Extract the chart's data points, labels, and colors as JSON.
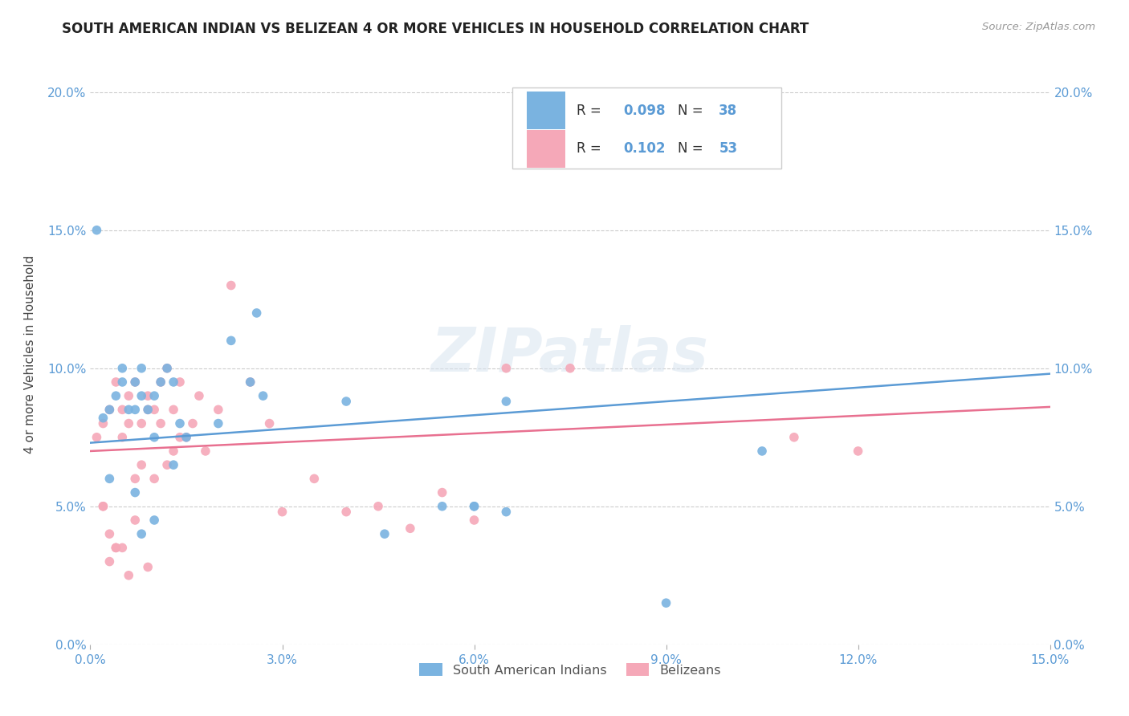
{
  "title": "SOUTH AMERICAN INDIAN VS BELIZEAN 4 OR MORE VEHICLES IN HOUSEHOLD CORRELATION CHART",
  "source": "Source: ZipAtlas.com",
  "ylabel": "4 or more Vehicles in Household",
  "xlim": [
    0.0,
    0.15
  ],
  "ylim": [
    0.0,
    0.21
  ],
  "xtick_vals": [
    0.0,
    0.03,
    0.06,
    0.09,
    0.12,
    0.15
  ],
  "xtick_labels": [
    "0.0%",
    "3.0%",
    "6.0%",
    "9.0%",
    "12.0%",
    "15.0%"
  ],
  "ytick_vals": [
    0.0,
    0.05,
    0.1,
    0.15,
    0.2
  ],
  "ytick_labels": [
    "0.0%",
    "5.0%",
    "10.0%",
    "15.0%",
    "20.0%"
  ],
  "blue_color": "#7ab3e0",
  "pink_color": "#f5a8b8",
  "blue_line_color": "#5b9bd5",
  "pink_line_color": "#e87090",
  "watermark": "ZIPatlas",
  "R_blue": "0.098",
  "N_blue": "38",
  "R_pink": "0.102",
  "N_pink": "53",
  "label_blue": "South American Indians",
  "label_pink": "Belizeans",
  "tick_color": "#5b9bd5",
  "blue_scatter_x": [
    0.002,
    0.003,
    0.004,
    0.005,
    0.005,
    0.006,
    0.007,
    0.007,
    0.008,
    0.008,
    0.009,
    0.01,
    0.01,
    0.011,
    0.012,
    0.013,
    0.014,
    0.015,
    0.02,
    0.022,
    0.025,
    0.026,
    0.027,
    0.04,
    0.055,
    0.06,
    0.06,
    0.065,
    0.065,
    0.046,
    0.09,
    0.001,
    0.003,
    0.007,
    0.008,
    0.01,
    0.013,
    0.105
  ],
  "blue_scatter_y": [
    0.082,
    0.085,
    0.09,
    0.095,
    0.1,
    0.085,
    0.085,
    0.095,
    0.1,
    0.09,
    0.085,
    0.075,
    0.09,
    0.095,
    0.1,
    0.095,
    0.08,
    0.075,
    0.08,
    0.11,
    0.095,
    0.12,
    0.09,
    0.088,
    0.05,
    0.05,
    0.05,
    0.088,
    0.048,
    0.04,
    0.015,
    0.15,
    0.06,
    0.055,
    0.04,
    0.045,
    0.065,
    0.07
  ],
  "pink_scatter_x": [
    0.001,
    0.002,
    0.002,
    0.003,
    0.003,
    0.004,
    0.004,
    0.005,
    0.005,
    0.006,
    0.006,
    0.007,
    0.007,
    0.008,
    0.008,
    0.009,
    0.009,
    0.01,
    0.01,
    0.011,
    0.011,
    0.012,
    0.012,
    0.013,
    0.013,
    0.014,
    0.014,
    0.015,
    0.016,
    0.017,
    0.018,
    0.02,
    0.022,
    0.025,
    0.028,
    0.03,
    0.035,
    0.04,
    0.045,
    0.05,
    0.055,
    0.065,
    0.075,
    0.11,
    0.12,
    0.002,
    0.004,
    0.006,
    0.003,
    0.005,
    0.007,
    0.009,
    0.06
  ],
  "pink_scatter_y": [
    0.075,
    0.08,
    0.05,
    0.085,
    0.03,
    0.095,
    0.035,
    0.075,
    0.085,
    0.08,
    0.09,
    0.06,
    0.095,
    0.065,
    0.08,
    0.085,
    0.09,
    0.06,
    0.085,
    0.08,
    0.095,
    0.065,
    0.1,
    0.07,
    0.085,
    0.075,
    0.095,
    0.075,
    0.08,
    0.09,
    0.07,
    0.085,
    0.13,
    0.095,
    0.08,
    0.048,
    0.06,
    0.048,
    0.05,
    0.042,
    0.055,
    0.1,
    0.1,
    0.075,
    0.07,
    0.05,
    0.035,
    0.025,
    0.04,
    0.035,
    0.045,
    0.028,
    0.045
  ],
  "blue_line_x": [
    0.0,
    0.15
  ],
  "blue_line_y": [
    0.073,
    0.098
  ],
  "pink_line_x": [
    0.0,
    0.15
  ],
  "pink_line_y": [
    0.07,
    0.086
  ]
}
